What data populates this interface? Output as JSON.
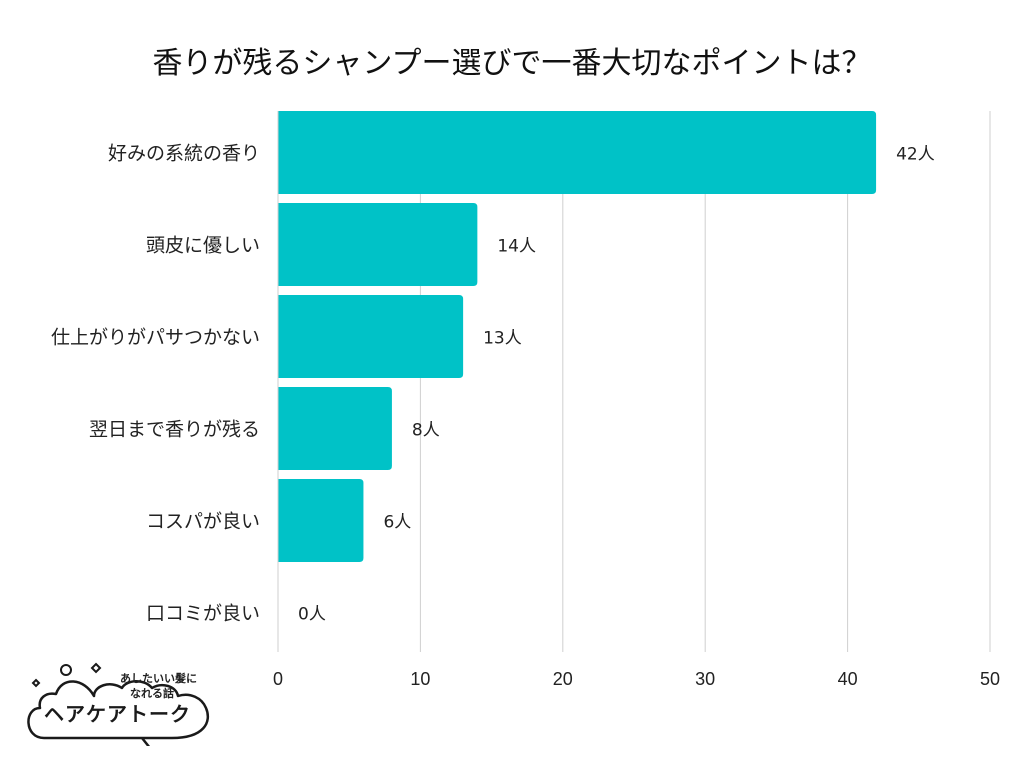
{
  "chart_data": {
    "type": "bar",
    "orientation": "horizontal",
    "title": "香りが残るシャンプー選びで一番大切なポイントは？",
    "categories": [
      "好みの系統の香り",
      "頭皮に優しい",
      "仕上がりがパサつかない",
      "翌日まで香りが残る",
      "コスパが良い",
      "口コミが良い"
    ],
    "values": [
      42,
      14,
      13,
      8,
      6,
      0
    ],
    "value_labels": [
      "42人",
      "14人",
      "13人",
      "8人",
      "6人",
      "0人"
    ],
    "xlim": [
      0,
      50
    ],
    "xticks": [
      "0",
      "10",
      "20",
      "30",
      "40",
      "50"
    ],
    "xlabel": "",
    "ylabel": "",
    "grid": true,
    "bar_color": "#00c2c7"
  },
  "logo": {
    "tagline_line1": "あしたいい髪に",
    "tagline_line2": "なれる話",
    "name": "ヘアケアトーク"
  }
}
